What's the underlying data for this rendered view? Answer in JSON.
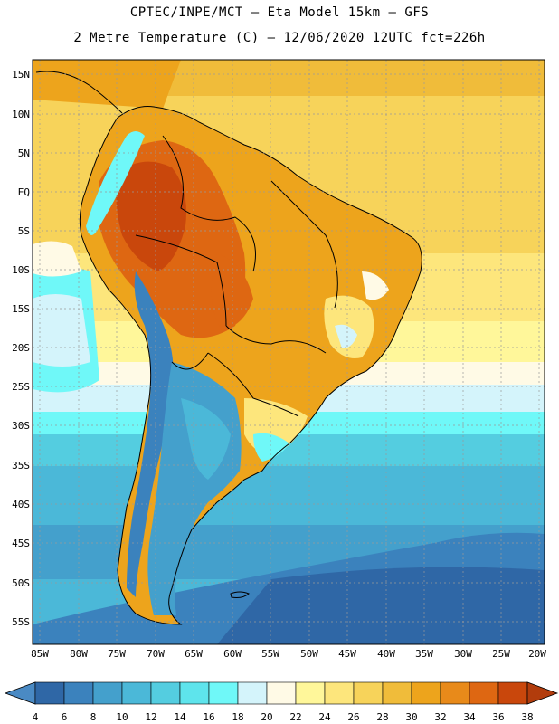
{
  "title_line1": "CPTEC/INPE/MCT –  Eta Model 15km – GFS",
  "title_line2": "2 Metre Temperature (C) – 12/06/2020 12UTC fct=226h",
  "lat_labels": [
    "15N",
    "10N",
    "5N",
    "EQ",
    "5S",
    "10S",
    "15S",
    "20S",
    "25S",
    "30S",
    "35S",
    "40S",
    "45S",
    "50S",
    "55S"
  ],
  "lon_labels": [
    "85W",
    "80W",
    "75W",
    "70W",
    "65W",
    "60W",
    "55W",
    "50W",
    "45W",
    "40W",
    "35W",
    "30W",
    "25W",
    "20W"
  ],
  "colorbar": {
    "ticks": [
      "4",
      "6",
      "8",
      "10",
      "12",
      "14",
      "16",
      "18",
      "20",
      "22",
      "24",
      "26",
      "28",
      "30",
      "32",
      "34",
      "36",
      "38"
    ],
    "colors": [
      "#2f67a6",
      "#3b82bd",
      "#44a0cc",
      "#4bb8d8",
      "#54cde0",
      "#5ee4ec",
      "#6ff8f8",
      "#d4f4fb",
      "#fffae6",
      "#fff79a",
      "#fde67c",
      "#f7d35a",
      "#f0bc3a",
      "#eda41c",
      "#e88a1a",
      "#de6712",
      "#c9470c"
    ],
    "low_color": "#4a8ac4",
    "high_color": "#b23c0c"
  }
}
